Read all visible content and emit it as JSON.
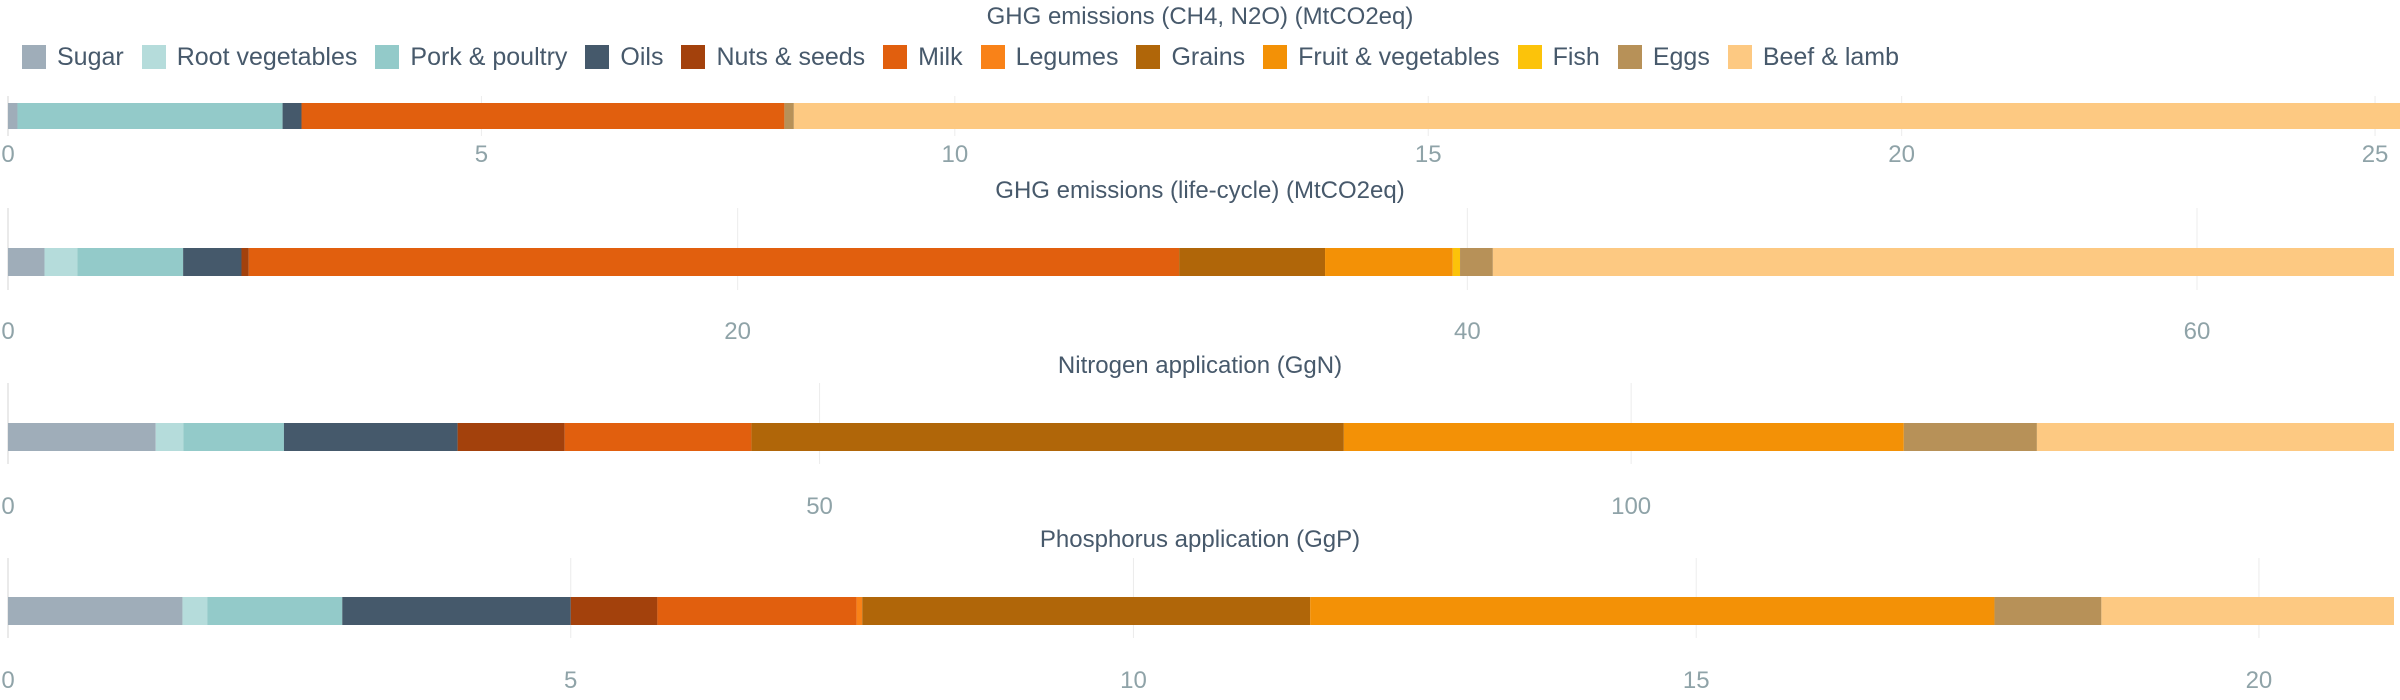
{
  "legend": [
    {
      "name": "Sugar",
      "color": "#9fadb9"
    },
    {
      "name": "Root vegetables",
      "color": "#b5dcdb"
    },
    {
      "name": "Pork & poultry",
      "color": "#93cac9"
    },
    {
      "name": "Oils",
      "color": "#45596b"
    },
    {
      "name": "Nuts & seeds",
      "color": "#a3410c"
    },
    {
      "name": "Milk",
      "color": "#e15f0e"
    },
    {
      "name": "Legumes",
      "color": "#f98218"
    },
    {
      "name": "Grains",
      "color": "#b06609"
    },
    {
      "name": "Fruit & vegetables",
      "color": "#f39106"
    },
    {
      "name": "Fish",
      "color": "#fcc30a"
    },
    {
      "name": "Eggs",
      "color": "#b79158"
    },
    {
      "name": "Beef & lamb",
      "color": "#fdc982"
    }
  ],
  "chart_data": [
    {
      "type": "bar",
      "orientation": "horizontal",
      "stacked": true,
      "title": "GHG emissions (CH4, N2O) (MtCO2eq)",
      "xlim": [
        0,
        25.2
      ],
      "xticks": [
        0,
        5,
        10,
        15,
        20,
        25
      ],
      "grid": true,
      "values": [
        0.1,
        0.0,
        2.8,
        0.2,
        0.0,
        5.1,
        0.0,
        0.0,
        0.0,
        0.0,
        0.1,
        17.0
      ]
    },
    {
      "type": "bar",
      "orientation": "horizontal",
      "stacked": true,
      "title": "GHG emissions (life-cycle) (MtCO2eq)",
      "xlim": [
        0,
        65.4
      ],
      "xticks": [
        0,
        20,
        40,
        60
      ],
      "grid": true,
      "values": [
        1.0,
        0.9,
        2.9,
        1.6,
        0.2,
        25.5,
        0.0,
        4.0,
        3.5,
        0.2,
        0.9,
        24.7
      ]
    },
    {
      "type": "bar",
      "orientation": "horizontal",
      "stacked": true,
      "title": "Nitrogen application (GgN)",
      "xlim": [
        0,
        147
      ],
      "xticks": [
        0,
        50,
        100
      ],
      "grid": true,
      "values": [
        9.1,
        1.7,
        6.2,
        10.7,
        6.6,
        11.5,
        0.0,
        36.5,
        34.5,
        0.0,
        8.2,
        22.0
      ]
    },
    {
      "type": "bar",
      "orientation": "horizontal",
      "stacked": true,
      "title": "Phosphorus application (GgP)",
      "xlim": [
        0,
        21.2
      ],
      "xticks": [
        0,
        5,
        10,
        15,
        20
      ],
      "grid": true,
      "values": [
        1.55,
        0.22,
        1.2,
        2.03,
        0.77,
        1.77,
        0.05,
        3.98,
        6.08,
        0.0,
        0.95,
        2.6
      ]
    }
  ]
}
